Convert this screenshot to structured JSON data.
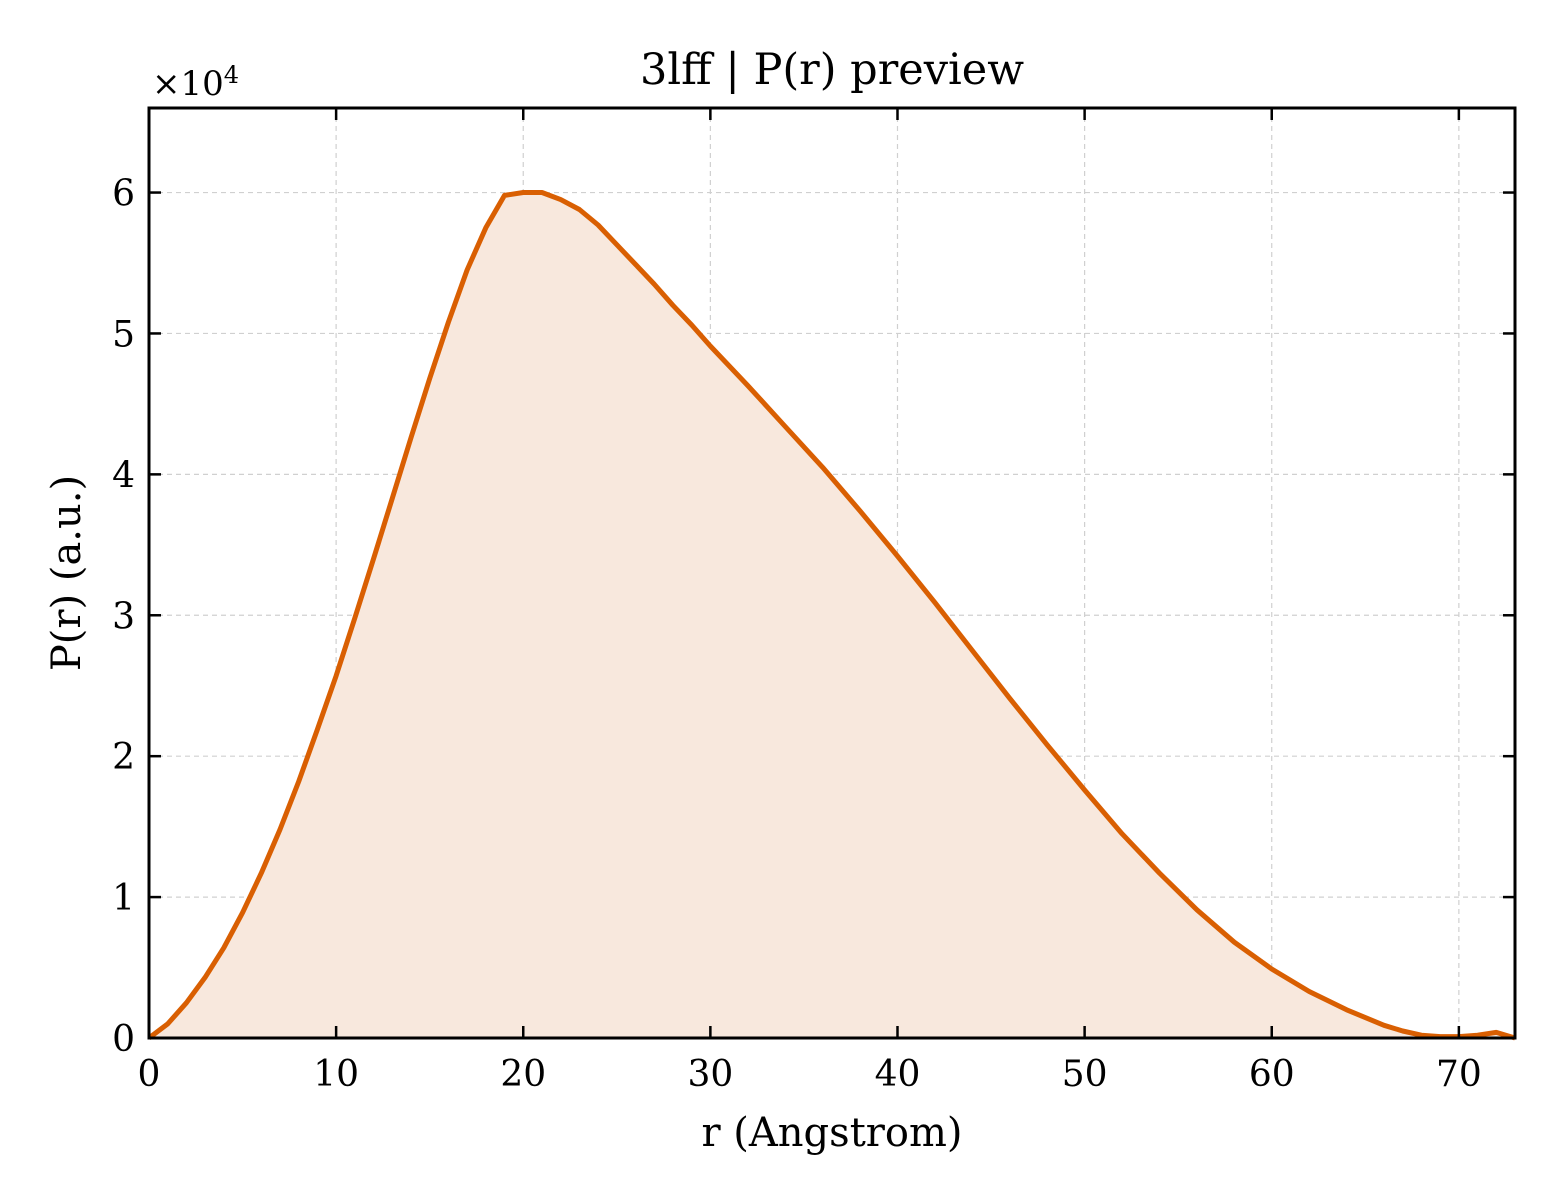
{
  "chart_data": {
    "type": "area",
    "title": "3lff | P(r) preview",
    "xlabel": "r (Angstrom)",
    "ylabel": "P(r) (a.u.)",
    "y_multiplier": {
      "base": "×10",
      "exponent": "4"
    },
    "xlim": [
      0,
      73
    ],
    "ylim": [
      0,
      66000
    ],
    "x_ticks": [
      0,
      10,
      20,
      30,
      40,
      50,
      60,
      70
    ],
    "x_tick_labels": [
      "0",
      "10",
      "20",
      "30",
      "40",
      "50",
      "60",
      "70"
    ],
    "y_ticks": [
      0,
      10000,
      20000,
      30000,
      40000,
      50000,
      60000
    ],
    "y_tick_labels": [
      "0",
      "1",
      "2",
      "3",
      "4",
      "5",
      "6"
    ],
    "grid": true,
    "series": [
      {
        "line_color": "#d95f02",
        "fill_color": "#f8e8dd",
        "x": [
          0,
          1,
          2,
          3,
          4,
          5,
          6,
          7,
          8,
          9,
          10,
          11,
          12,
          13,
          14,
          15,
          16,
          17,
          18,
          19,
          20,
          21,
          22,
          23,
          24,
          25,
          26,
          27,
          28,
          29,
          30,
          32,
          34,
          36,
          38,
          40,
          42,
          44,
          46,
          48,
          50,
          52,
          54,
          56,
          58,
          60,
          62,
          64,
          66,
          67,
          68,
          69,
          70,
          71,
          72,
          73
        ],
        "y": [
          0,
          1000,
          2500,
          4300,
          6400,
          8900,
          11700,
          14800,
          18200,
          21900,
          25700,
          29800,
          34000,
          38300,
          42600,
          46800,
          50800,
          54500,
          57500,
          59800,
          60000,
          60000,
          59500,
          58800,
          57700,
          56300,
          54900,
          53500,
          52000,
          50600,
          49100,
          46300,
          43400,
          40500,
          37400,
          34200,
          30900,
          27500,
          24100,
          20800,
          17600,
          14500,
          11700,
          9100,
          6800,
          4900,
          3300,
          2000,
          900,
          500,
          200,
          100,
          100,
          200,
          400,
          0
        ]
      }
    ]
  }
}
